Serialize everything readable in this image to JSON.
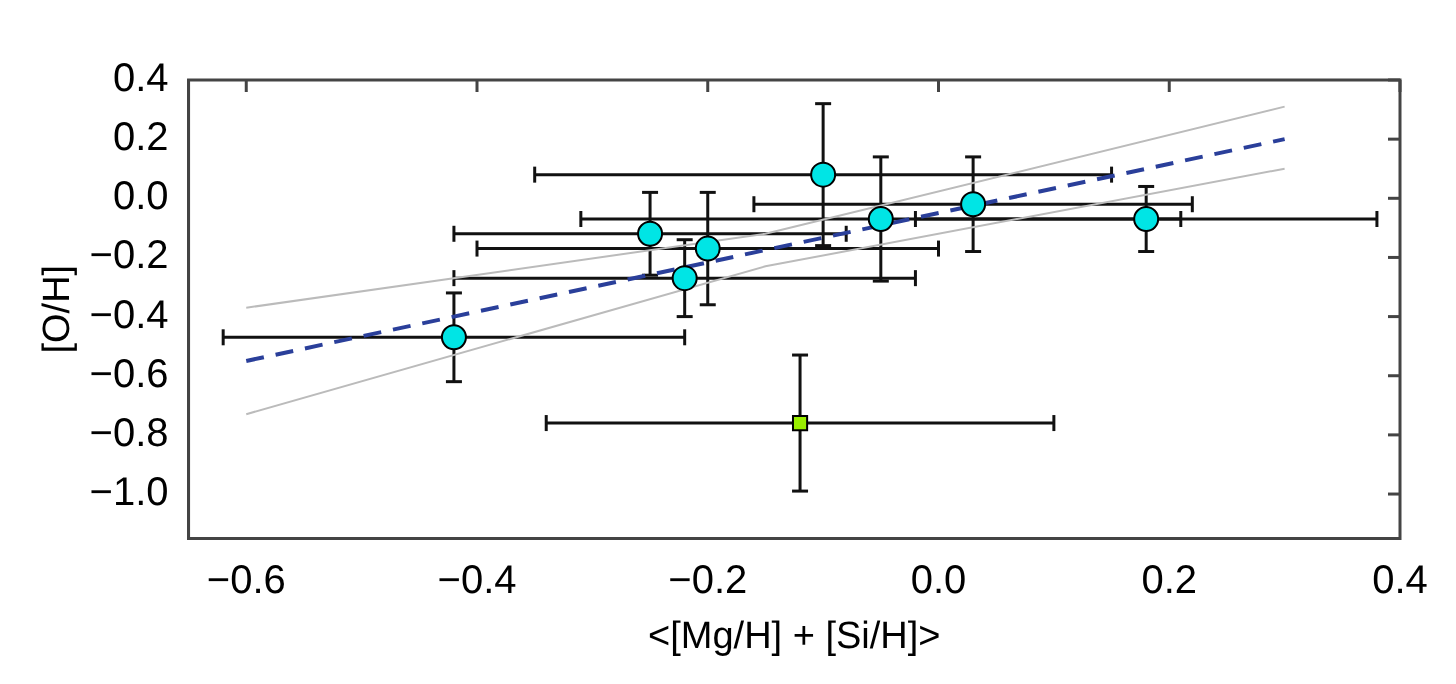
{
  "chart_data": {
    "type": "scatter",
    "xlabel": "<[Mg/H] + [Si/H]>",
    "ylabel": "[O/H]",
    "xlim": [
      -0.65,
      0.4
    ],
    "xticks": [
      {
        "value": -0.6,
        "label": "−0.6"
      },
      {
        "value": -0.4,
        "label": "−0.4"
      },
      {
        "value": -0.2,
        "label": "−0.2"
      },
      {
        "value": 0,
        "label": "0.0"
      },
      {
        "value": 0.2,
        "label": "0.2"
      },
      {
        "value": 0.4,
        "label": "0.4"
      }
    ],
    "ylim": [
      -1.15,
      0.4
    ],
    "yticks": [
      {
        "value": -1,
        "label": "−1.0"
      },
      {
        "value": -0.8,
        "label": "−0.8"
      },
      {
        "value": -0.6,
        "label": "−0.6"
      },
      {
        "value": -0.4,
        "label": "−0.4"
      },
      {
        "value": -0.2,
        "label": "−0.2"
      },
      {
        "value": 0,
        "label": "0.0"
      },
      {
        "value": 0.2,
        "label": "0.2"
      },
      {
        "value": 0.4,
        "label": "0.4"
      }
    ],
    "grid": false,
    "legend": false,
    "series": [
      {
        "type": "line",
        "color": "#bbbbbb",
        "line_style": "solid",
        "marker": "none",
        "x": [
          -0.6,
          -0.15,
          0.3
        ],
        "values": [
          -0.37,
          -0.12,
          0.31
        ]
      },
      {
        "type": "line",
        "color": "#bbbbbb",
        "line_style": "solid",
        "marker": "none",
        "x": [
          -0.6,
          -0.15,
          0.3
        ],
        "values": [
          -0.73,
          -0.23,
          0.1
        ]
      },
      {
        "type": "line",
        "color": "#2a3f9a",
        "line_style": "dashed",
        "marker": "none",
        "x": [
          -0.6,
          0.3
        ],
        "values": [
          -0.55,
          0.2
        ]
      },
      {
        "type": "scatter",
        "color": "#00e5e5",
        "marker": "circle",
        "x": [
          -0.42,
          -0.25,
          -0.22,
          -0.2,
          -0.1,
          -0.05,
          0.03,
          0.18
        ],
        "values": [
          -0.47,
          -0.12,
          -0.27,
          -0.17,
          0.08,
          -0.07,
          -0.02,
          -0.07
        ],
        "xerrors": [
          0.2,
          0.17,
          0.2,
          0.2,
          0.25,
          0.26,
          0.19,
          0.2
        ],
        "errors": [
          0.15,
          0.14,
          0.13,
          0.19,
          0.24,
          0.21,
          0.16,
          0.11
        ]
      },
      {
        "type": "scatter",
        "color": "#99ee00",
        "marker": "square",
        "x": [
          -0.12
        ],
        "values": [
          -0.76
        ],
        "xerrors": [
          0.22
        ],
        "errors": [
          0.23
        ]
      }
    ]
  }
}
